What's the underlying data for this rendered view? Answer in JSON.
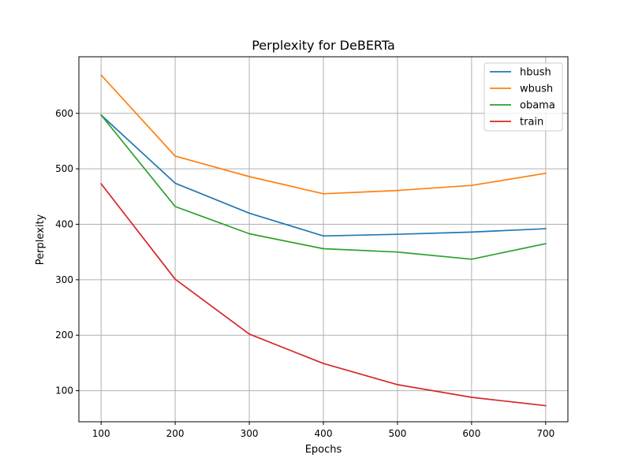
{
  "chart_data": {
    "type": "line",
    "title": "Perplexity for DeBERTa",
    "xlabel": "Epochs",
    "ylabel": "Perplexity",
    "x": [
      100,
      200,
      300,
      400,
      500,
      600,
      700
    ],
    "xticks": [
      "100",
      "200",
      "300",
      "400",
      "500",
      "600",
      "700"
    ],
    "yticks": [
      "100",
      "200",
      "300",
      "400",
      "500",
      "600"
    ],
    "xlim": [
      70,
      730
    ],
    "ylim": [
      44,
      702
    ],
    "grid": true,
    "legend_position": "top-right",
    "series": [
      {
        "name": "hbush",
        "color": "#1f77b4",
        "values": [
          597,
          474,
          420,
          379,
          382,
          386,
          392
        ]
      },
      {
        "name": "wbush",
        "color": "#ff7f0e",
        "values": [
          669,
          523,
          486,
          455,
          461,
          470,
          492
        ]
      },
      {
        "name": "obama",
        "color": "#2ca02c",
        "values": [
          597,
          432,
          383,
          356,
          350,
          337,
          365
        ]
      },
      {
        "name": "train",
        "color": "#d62728",
        "values": [
          473,
          301,
          202,
          149,
          111,
          88,
          73
        ]
      }
    ]
  }
}
